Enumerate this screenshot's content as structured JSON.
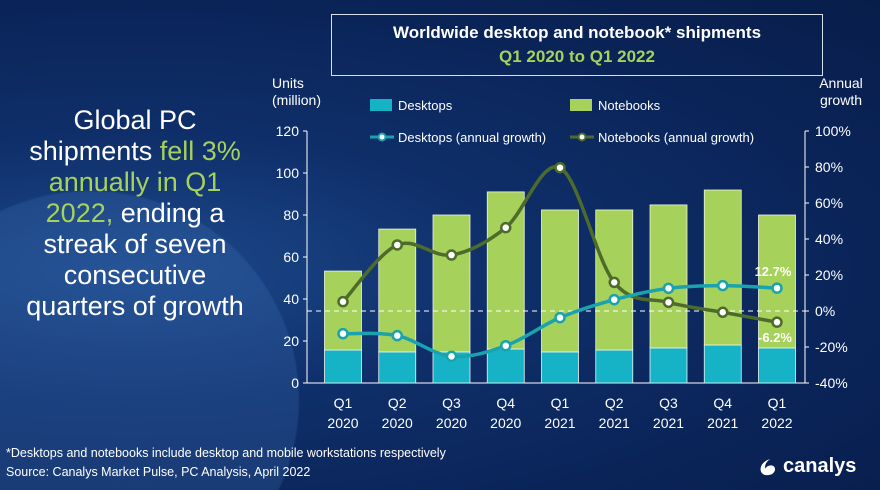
{
  "headline": {
    "pre": "Global PC shipments ",
    "highlight": "fell 3% annually in Q1 2022,",
    "post": " ending a streak of seven consecutive quarters of growth"
  },
  "title": {
    "line1": "Worldwide desktop and notebook* shipments",
    "line2": "Q1 2020 to Q1 2022"
  },
  "footnote": "*Desktops and notebooks include desktop and mobile workstations respectively",
  "source": "Source: Canalys Market Pulse, PC Analysis, April 2022",
  "logo": {
    "text": "canalys"
  },
  "chart_data": {
    "type": "bar",
    "stacked": true,
    "ylabel": "Units (million)",
    "y2label": "Annual growth",
    "ylim": [
      0,
      120
    ],
    "y2lim": [
      -40,
      100
    ],
    "yticks": [
      "0",
      "20",
      "40",
      "60",
      "80",
      "100",
      "120"
    ],
    "y2ticks": [
      "-40%",
      "-20%",
      "0%",
      "20%",
      "40%",
      "60%",
      "80%",
      "100%"
    ],
    "categories": [
      [
        "Q1",
        "2020"
      ],
      [
        "Q2",
        "2020"
      ],
      [
        "Q3",
        "2020"
      ],
      [
        "Q4",
        "2020"
      ],
      [
        "Q1",
        "2021"
      ],
      [
        "Q2",
        "2021"
      ],
      [
        "Q3",
        "2021"
      ],
      [
        "Q4",
        "2021"
      ],
      [
        "Q1",
        "2022"
      ]
    ],
    "series": [
      {
        "name": "Desktops",
        "type": "bar",
        "color": "#16b3c6",
        "values": [
          15.7,
          14.8,
          14.8,
          16.2,
          14.8,
          15.7,
          16.7,
          18.1,
          16.7
        ]
      },
      {
        "name": "Notebooks",
        "type": "bar",
        "color": "#a6d15a",
        "values": [
          37.6,
          58.5,
          65.2,
          74.8,
          67.6,
          66.7,
          68.1,
          73.8,
          63.3
        ]
      },
      {
        "name": "Desktops (annual growth)",
        "type": "line",
        "axis": "right",
        "color": "#1aa3ae",
        "values": [
          -12.6,
          -13.7,
          -25.2,
          -19.3,
          -3.7,
          6.3,
          12.6,
          14.1,
          12.7
        ]
      },
      {
        "name": "Notebooks (annual growth)",
        "type": "line",
        "axis": "right",
        "color": "#4d6b2b",
        "values": [
          5.2,
          36.7,
          31.1,
          46.3,
          79.6,
          15.9,
          4.8,
          -0.7,
          -6.2
        ]
      }
    ],
    "annotations": [
      "12.7%",
      "-6.2%"
    ],
    "reference_line": "0%",
    "legend": "top"
  }
}
